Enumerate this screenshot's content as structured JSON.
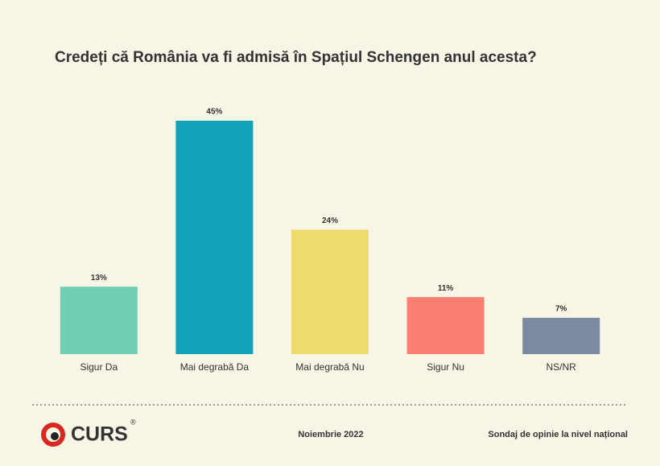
{
  "chart_data": {
    "type": "bar",
    "title": "Credeți că România va fi admisă în Spațiul Schengen anul acesta?",
    "categories": [
      "Sigur Da",
      "Mai degrabă Da",
      "Mai degrabă Nu",
      "Sigur Nu",
      "NS/NR"
    ],
    "values": [
      13,
      45,
      24,
      11,
      7
    ],
    "value_labels": [
      "13%",
      "45%",
      "24%",
      "11%",
      "7%"
    ],
    "colors": [
      "#6fcfb5",
      "#12a3b9",
      "#efda6c",
      "#fa7f72",
      "#7b8aa1"
    ]
  },
  "footer": {
    "logo": "CURS",
    "logo_mark": "®",
    "date": "Noiembrie 2022",
    "note": "Sondaj de opinie la nivel național"
  }
}
